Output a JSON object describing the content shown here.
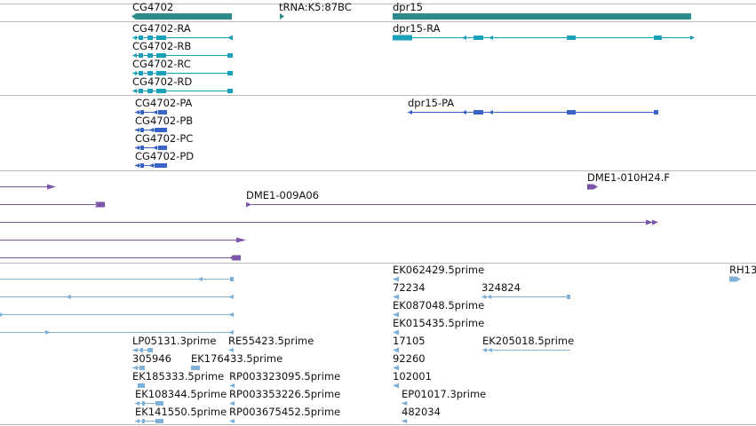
{
  "colors": {
    "gene": "#2E8B8B",
    "transcript_noncoding": "#1AA0B8",
    "transcript_coding": "#3A63C8",
    "clone": "#7B55A8",
    "est": "#7FB0D8",
    "divider": "#BBBBBB"
  },
  "tracks": {
    "genes": {
      "labels": {
        "cg4702": "CG4702",
        "trna": "tRNA:K5:87BC",
        "dpr15": "dpr15"
      }
    },
    "transcripts": {
      "labels": {
        "cg4702_ra": "CG4702-RA",
        "cg4702_rb": "CG4702-RB",
        "cg4702_rc": "CG4702-RC",
        "cg4702_rd": "CG4702-RD",
        "dpr15_ra": "dpr15-RA"
      }
    },
    "proteins": {
      "labels": {
        "cg4702_pa": "CG4702-PA",
        "cg4702_pb": "CG4702-PB",
        "cg4702_pc": "CG4702-PC",
        "cg4702_pd": "CG4702-PD",
        "dpr15_pa": "dpr15-PA"
      }
    },
    "clones": {
      "labels": {
        "dme1_010h24": "DME1-010H24.F",
        "dme1_009a06": "DME1-009A06"
      }
    },
    "ests": {
      "labels": {
        "ek062429": "EK062429.5prime",
        "rh13": "RH13",
        "n72234": "72234",
        "n324824": "324824",
        "ek087048": "EK087048.5prime",
        "ek015435": "EK015435.5prime",
        "lp05131": "LP05131.3prime",
        "re55423": "RE55423.5prime",
        "n17105": "17105",
        "ek205018": "EK205018.5prime",
        "n305946": "305946",
        "ek176433": "EK176433.5prime",
        "n92260": "92260",
        "ek185333": "EK185333.5prime",
        "rp003323095": "RP003323095.5prime",
        "n102001": "102001",
        "ek108344": "EK108344.5prime",
        "rp003353226": "RP003353226.5prime",
        "ep01017": "EP01017.3prime",
        "ek141550": "EK141550.5prime",
        "rp003675452": "RP003675452.5prime",
        "n482034": "482034"
      }
    }
  }
}
